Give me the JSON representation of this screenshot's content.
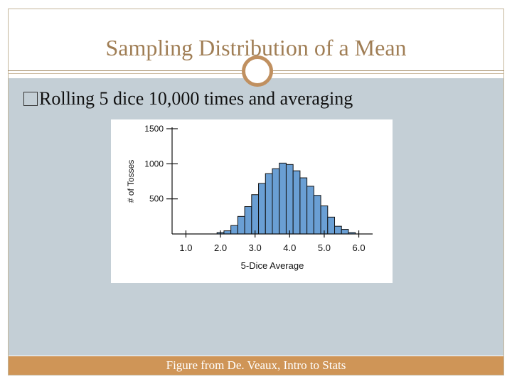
{
  "slide": {
    "title": "Sampling Distribution of a Mean",
    "bullet": "Rolling 5 dice 10,000 times and averaging",
    "caption": "Figure from De. Veaux, Intro to Stats"
  },
  "colors": {
    "title": "#a07e55",
    "accent": "#cf9557",
    "body_bg": "#c4cfd6",
    "bar_fill": "#6a9fd4"
  },
  "chart_data": {
    "type": "bar",
    "xlabel": "5-Dice Average",
    "ylabel": "# of Tosses",
    "xlim": [
      0.6,
      6.4
    ],
    "ylim": [
      0,
      1500
    ],
    "xticks": [
      "1.0",
      "2.0",
      "3.0",
      "4.0",
      "5.0",
      "6.0"
    ],
    "yticks": [
      "500",
      "1000",
      "1500"
    ],
    "bin_width": 0.2,
    "bins": [
      {
        "x": 2.0,
        "y": 20
      },
      {
        "x": 2.2,
        "y": 45
      },
      {
        "x": 2.4,
        "y": 120
      },
      {
        "x": 2.6,
        "y": 250
      },
      {
        "x": 2.8,
        "y": 390
      },
      {
        "x": 3.0,
        "y": 560
      },
      {
        "x": 3.2,
        "y": 720
      },
      {
        "x": 3.4,
        "y": 860
      },
      {
        "x": 3.6,
        "y": 930
      },
      {
        "x": 3.8,
        "y": 1010
      },
      {
        "x": 4.0,
        "y": 990
      },
      {
        "x": 4.2,
        "y": 900
      },
      {
        "x": 4.4,
        "y": 800
      },
      {
        "x": 4.6,
        "y": 680
      },
      {
        "x": 4.8,
        "y": 550
      },
      {
        "x": 5.0,
        "y": 400
      },
      {
        "x": 5.2,
        "y": 240
      },
      {
        "x": 5.4,
        "y": 110
      },
      {
        "x": 5.6,
        "y": 65
      },
      {
        "x": 5.8,
        "y": 20
      }
    ],
    "grid": false
  }
}
